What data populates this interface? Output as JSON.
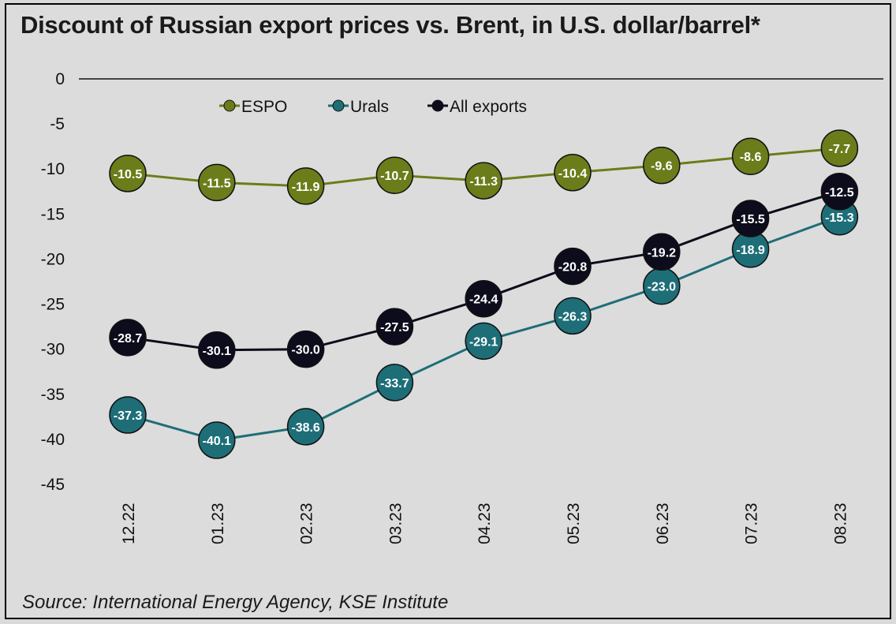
{
  "chart_data": {
    "type": "line",
    "title": "Discount of Russian export prices vs. Brent, in U.S. dollar/barrel*",
    "source": "Source: International Energy Agency, KSE Institute",
    "categories": [
      "12.22",
      "01.23",
      "02.23",
      "03.23",
      "04.23",
      "05.23",
      "06.23",
      "07.23",
      "08.23"
    ],
    "ylim": [
      -45,
      0
    ],
    "yticks": [
      0,
      -5,
      -10,
      -15,
      -20,
      -25,
      -30,
      -35,
      -40,
      -45
    ],
    "legend_position": "top-center",
    "grid": false,
    "series": [
      {
        "name": "ESPO",
        "color": "#6b7d1a",
        "marker_color": "#6b7d1a",
        "label_color": "#ffffff",
        "values": [
          -10.5,
          -11.5,
          -11.9,
          -10.7,
          -11.3,
          -10.4,
          -9.6,
          -8.6,
          -7.7
        ],
        "labels": [
          "-10.5",
          "-11.5",
          "-11.9",
          "-10.7",
          "-11.3",
          "-10.4",
          "-9.6",
          "-8.6",
          "-7.7"
        ]
      },
      {
        "name": "Urals",
        "color": "#1e6e78",
        "marker_color": "#1e6e78",
        "label_color": "#ffffff",
        "values": [
          -37.3,
          -40.1,
          -38.6,
          -33.7,
          -29.1,
          -26.3,
          -23.0,
          -18.9,
          -15.3
        ],
        "labels": [
          "-37.3",
          "-40.1",
          "-38.6",
          "-33.7",
          "-29.1",
          "-26.3",
          "-23.0",
          "-18.9",
          "-15.3"
        ]
      },
      {
        "name": "All exports",
        "color": "#0c0c1c",
        "marker_color": "#0c0c1c",
        "label_color": "#ffffff",
        "values": [
          -28.7,
          -30.1,
          -30.0,
          -27.5,
          -24.4,
          -20.8,
          -19.2,
          -15.5,
          -12.5
        ],
        "labels": [
          "-28.7",
          "-30.1",
          "-30.0",
          "-27.5",
          "-24.4",
          "-20.8",
          "-19.2",
          "-15.5",
          "-12.5"
        ]
      }
    ]
  }
}
